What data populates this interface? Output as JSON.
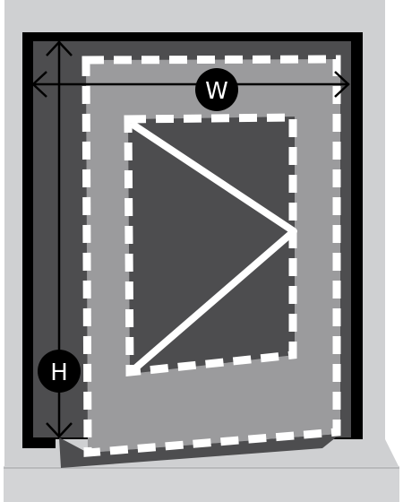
{
  "diagram": {
    "width_marker": "W",
    "height_marker": "H"
  },
  "colors": {
    "wall": "#cfd0d2",
    "frame": "#000000",
    "opening": "#4d4d4f",
    "sash": "#9b9b9d",
    "glass": "#4d4d4f",
    "dashes": "#ffffff",
    "arrows": "#000000",
    "marker_fill": "#000000",
    "marker_text": "#ffffff",
    "sill": "#cfd0d2",
    "sill_shadow": "#b8b9bb"
  },
  "icons": {
    "opening_indicator": "triangle-open-right",
    "width_dimension": "double-arrow-horizontal",
    "height_dimension": "double-arrow-vertical"
  }
}
